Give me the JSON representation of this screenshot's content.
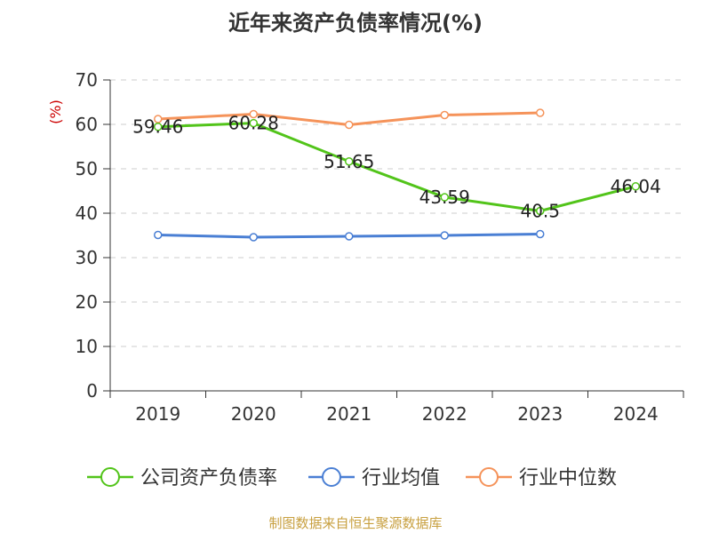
{
  "title": "近年来资产负债率情况(%)",
  "source_note": "制图数据来自恒生聚源数据库",
  "chart_data": {
    "type": "line",
    "unit_label": "(%)",
    "categories": [
      "2019",
      "2020",
      "2021",
      "2022",
      "2023",
      "2024"
    ],
    "ylim": [
      0,
      70
    ],
    "yticks": [
      0,
      10,
      20,
      30,
      40,
      50,
      60,
      70
    ],
    "grid": true,
    "legend_position": "bottom",
    "series": [
      {
        "name": "公司资产负债率",
        "color": "#52c41a",
        "values": [
          59.46,
          60.28,
          51.65,
          43.59,
          40.5,
          46.04
        ],
        "labels": [
          "59.46",
          "60.28",
          "51.65",
          "43.59",
          "40.5",
          "46.04"
        ],
        "show_labels": true
      },
      {
        "name": "行业均值",
        "color": "#4a7fd4",
        "values": [
          35.1,
          34.6,
          34.8,
          35.0,
          35.3,
          null
        ],
        "show_labels": false
      },
      {
        "name": "行业中位数",
        "color": "#f5935a",
        "values": [
          61.2,
          62.3,
          59.9,
          62.1,
          62.6,
          null
        ],
        "show_labels": false
      }
    ]
  }
}
